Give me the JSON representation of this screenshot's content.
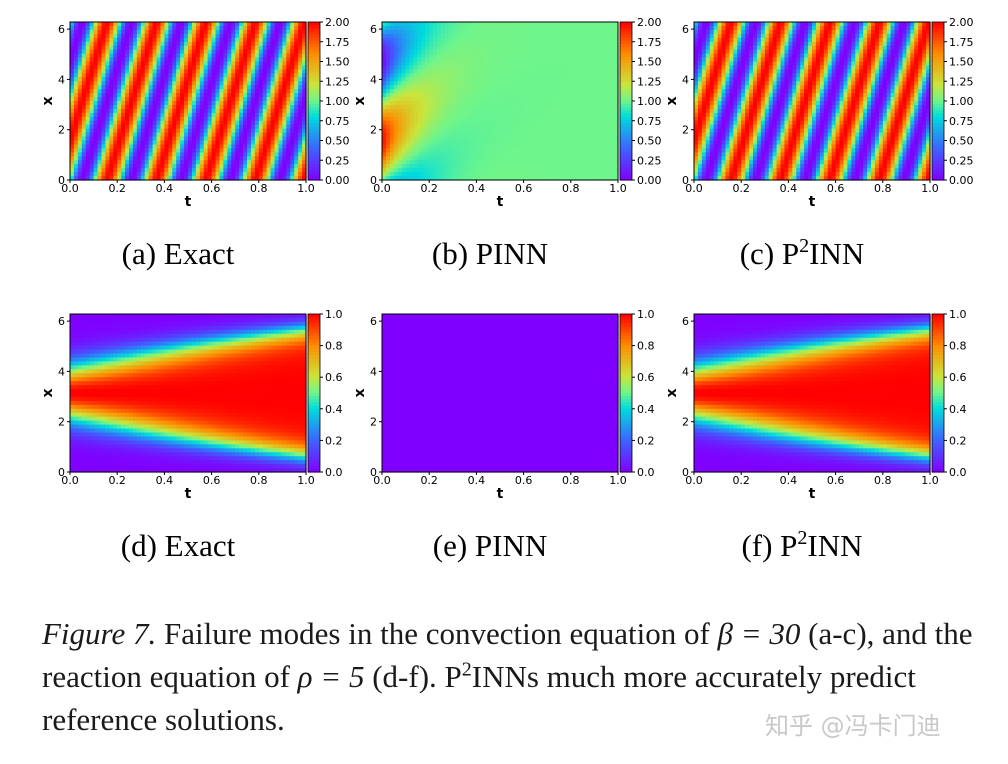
{
  "panels": [
    {
      "id": "a",
      "label": "(a) Exact",
      "kind": "convection",
      "field": "wave",
      "ylabel": "x",
      "xlabel": "t",
      "xticks": [
        "0.0",
        "0.2",
        "0.4",
        "0.6",
        "0.8",
        "1.0"
      ],
      "yticks": [
        "0",
        "2",
        "4",
        "6"
      ],
      "cbar_ticks": [
        "2.00",
        "1.75",
        "1.50",
        "1.25",
        "1.00",
        "0.75",
        "0.50",
        "0.25",
        "0.00"
      ]
    },
    {
      "id": "b",
      "label": "(b) PINN",
      "kind": "convection",
      "field": "pinn_conv",
      "ylabel": "x",
      "xlabel": "t",
      "xticks": [
        "0.0",
        "0.2",
        "0.4",
        "0.6",
        "0.8",
        "1.0"
      ],
      "yticks": [
        "0",
        "2",
        "4",
        "6"
      ],
      "cbar_ticks": [
        "2.00",
        "1.75",
        "1.50",
        "1.25",
        "1.00",
        "0.75",
        "0.50",
        "0.25",
        "0.00"
      ]
    },
    {
      "id": "c",
      "label_prefix": "(c) P",
      "label_sup": "2",
      "label_suffix": "INN",
      "kind": "convection",
      "field": "wave",
      "ylabel": "x",
      "xlabel": "t",
      "xticks": [
        "0.0",
        "0.2",
        "0.4",
        "0.6",
        "0.8",
        "1.0"
      ],
      "yticks": [
        "0",
        "2",
        "4",
        "6"
      ],
      "cbar_ticks": [
        "2.00",
        "1.75",
        "1.50",
        "1.25",
        "1.00",
        "0.75",
        "0.50",
        "0.25",
        "0.00"
      ]
    },
    {
      "id": "d",
      "label": "(d) Exact",
      "kind": "reaction",
      "field": "reaction",
      "ylabel": "x",
      "xlabel": "t",
      "xticks": [
        "0.0",
        "0.2",
        "0.4",
        "0.6",
        "0.8",
        "1.0"
      ],
      "yticks": [
        "0",
        "2",
        "4",
        "6"
      ],
      "cbar_ticks": [
        "1.0",
        "0.8",
        "0.6",
        "0.4",
        "0.2",
        "0.0"
      ]
    },
    {
      "id": "e",
      "label": "(e) PINN",
      "kind": "reaction",
      "field": "flat",
      "ylabel": "x",
      "xlabel": "t",
      "xticks": [
        "0.0",
        "0.2",
        "0.4",
        "0.6",
        "0.8",
        "1.0"
      ],
      "yticks": [
        "0",
        "2",
        "4",
        "6"
      ],
      "cbar_ticks": [
        "1.0",
        "0.8",
        "0.6",
        "0.4",
        "0.2",
        "0.0"
      ]
    },
    {
      "id": "f",
      "label_prefix": "(f) P",
      "label_sup": "2",
      "label_suffix": "INN",
      "kind": "reaction",
      "field": "reaction",
      "ylabel": "x",
      "xlabel": "t",
      "xticks": [
        "0.0",
        "0.2",
        "0.4",
        "0.6",
        "0.8",
        "1.0"
      ],
      "yticks": [
        "0",
        "2",
        "4",
        "6"
      ],
      "cbar_ticks": [
        "1.0",
        "0.8",
        "0.6",
        "0.4",
        "0.2",
        "0.0"
      ]
    }
  ],
  "caption": {
    "fig_label": "Figure 7.",
    "part1": " Failure modes in the convection equation of ",
    "beta": "β = 30",
    "part2": " (a-c), and the reaction equation of ",
    "rho": "ρ = 5",
    "part3": " (d-f). P",
    "sup": "2",
    "part4": "INNs much more accurately predict reference solutions."
  },
  "watermark": "知乎 @冯卡门迪"
}
